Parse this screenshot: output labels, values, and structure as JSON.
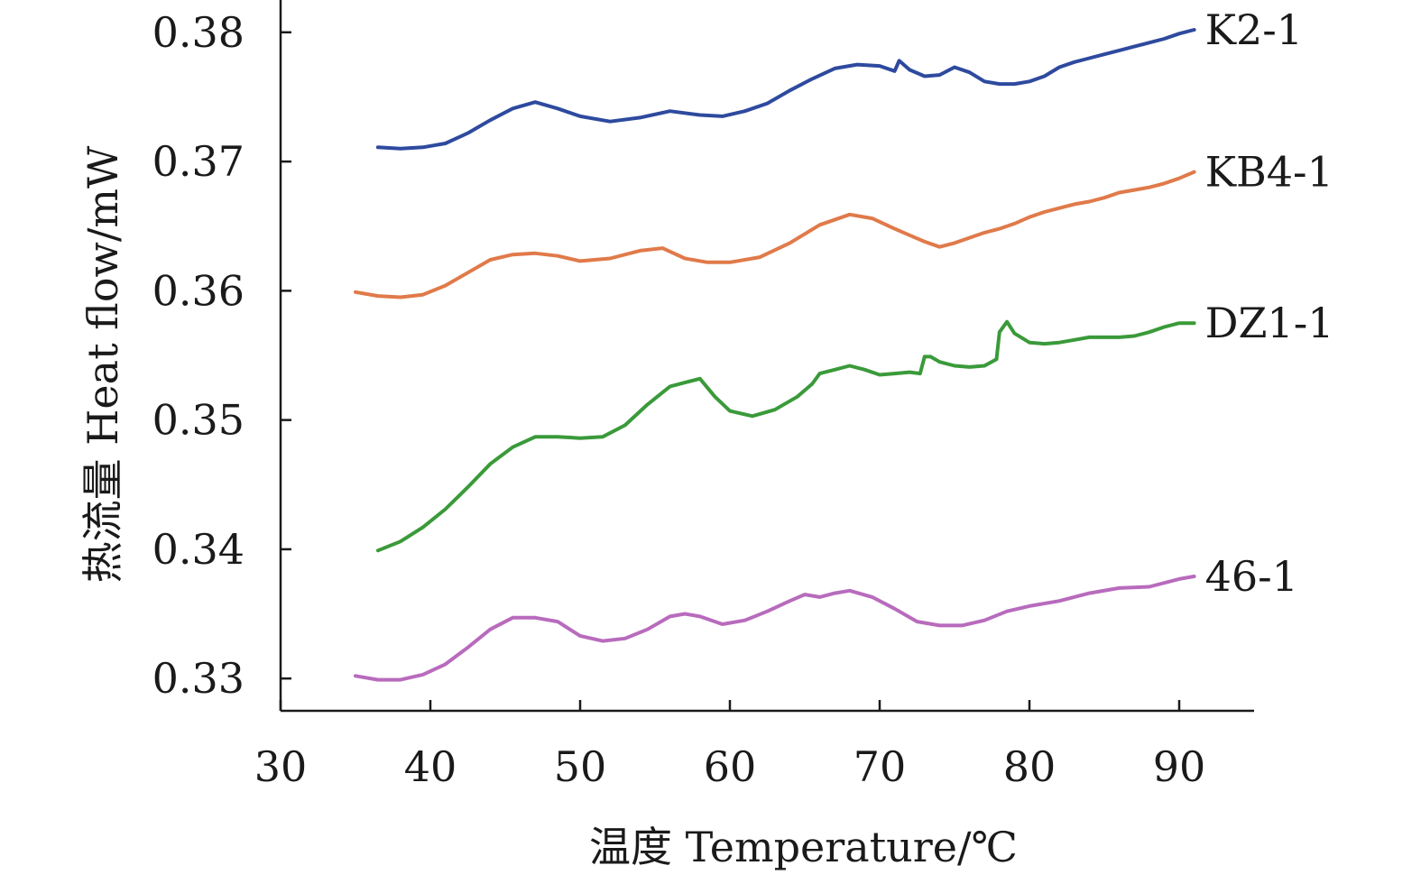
{
  "chart_data": {
    "type": "line",
    "xlabel": "温度 Temperature/℃",
    "ylabel": "热流量 Heat flow/mW",
    "xlim": [
      30,
      95
    ],
    "ylim": [
      0.3275,
      0.3825
    ],
    "xticks": [
      30,
      40,
      50,
      60,
      70,
      80,
      90
    ],
    "yticks": [
      0.33,
      0.34,
      0.35,
      0.36,
      0.37,
      0.38
    ],
    "xtick_labels": [
      "30",
      "40",
      "50",
      "60",
      "70",
      "80",
      "90"
    ],
    "ytick_labels": [
      "0.33",
      "0.34",
      "0.35",
      "0.36",
      "0.37",
      "0.38"
    ],
    "grid": false,
    "legend": "none",
    "series": [
      {
        "name": "K2-1",
        "color": "#2e4a9e",
        "x": [
          36.5,
          38,
          39.5,
          41,
          42.5,
          44,
          45.5,
          47,
          48.5,
          50,
          52,
          54,
          56,
          58,
          59.5,
          61,
          62.5,
          64,
          65.5,
          67,
          68.5,
          70,
          71,
          71.3,
          72,
          73,
          74,
          75,
          76,
          77,
          78,
          79,
          80,
          81,
          82,
          83,
          84,
          85,
          86,
          87,
          88,
          89,
          90,
          91
        ],
        "y": [
          0.3711,
          0.371,
          0.3711,
          0.3714,
          0.3722,
          0.3732,
          0.3741,
          0.3746,
          0.3741,
          0.3735,
          0.3731,
          0.3734,
          0.3739,
          0.3736,
          0.3735,
          0.3739,
          0.3745,
          0.3755,
          0.3764,
          0.3772,
          0.3775,
          0.3774,
          0.377,
          0.3778,
          0.3771,
          0.3766,
          0.3767,
          0.3773,
          0.3769,
          0.3762,
          0.376,
          0.376,
          0.3762,
          0.3766,
          0.3773,
          0.3777,
          0.378,
          0.3783,
          0.3786,
          0.3789,
          0.3792,
          0.3795,
          0.3799,
          0.3802
        ]
      },
      {
        "name": "KB4-1",
        "color": "#e07a4a",
        "x": [
          35,
          36.5,
          38,
          39.5,
          41,
          42.5,
          44,
          45.5,
          47,
          48.5,
          50,
          52,
          54,
          55.5,
          57,
          58.5,
          60,
          62,
          64,
          66,
          68,
          69.5,
          71,
          72,
          73,
          74,
          75,
          76,
          77,
          78,
          79,
          80,
          81,
          82,
          83,
          84,
          85,
          86,
          87,
          88,
          89,
          90,
          91
        ],
        "y": [
          0.3599,
          0.3596,
          0.3595,
          0.3597,
          0.3604,
          0.3614,
          0.3624,
          0.3628,
          0.3629,
          0.3627,
          0.3623,
          0.3625,
          0.3631,
          0.3633,
          0.3625,
          0.3622,
          0.3622,
          0.3626,
          0.3637,
          0.3651,
          0.3659,
          0.3656,
          0.3648,
          0.3643,
          0.3638,
          0.3634,
          0.3637,
          0.3641,
          0.3645,
          0.3648,
          0.3652,
          0.3657,
          0.3661,
          0.3664,
          0.3667,
          0.3669,
          0.3672,
          0.3676,
          0.3678,
          0.368,
          0.3683,
          0.3687,
          0.3692
        ]
      },
      {
        "name": "DZ1-1",
        "color": "#3a9a3a",
        "x": [
          36.5,
          38,
          39.5,
          41,
          42.5,
          44,
          45.5,
          47,
          48.5,
          50,
          51.5,
          53,
          54.5,
          56,
          57,
          58,
          59,
          60,
          61.5,
          63,
          64.5,
          65.5,
          66,
          67,
          68,
          69,
          70,
          71,
          72,
          72.7,
          73,
          73.4,
          74,
          75,
          76,
          77,
          77.8,
          78,
          78.5,
          79,
          80,
          81,
          82,
          83,
          84,
          85,
          86,
          87,
          88,
          89,
          90,
          91
        ],
        "y": [
          0.3399,
          0.3406,
          0.3417,
          0.3431,
          0.3448,
          0.3466,
          0.3479,
          0.3487,
          0.3487,
          0.3486,
          0.3487,
          0.3496,
          0.3512,
          0.3526,
          0.3529,
          0.3532,
          0.3518,
          0.3507,
          0.3503,
          0.3508,
          0.3518,
          0.3528,
          0.3536,
          0.3539,
          0.3542,
          0.3539,
          0.3535,
          0.3536,
          0.3537,
          0.3536,
          0.3549,
          0.3549,
          0.3545,
          0.3542,
          0.3541,
          0.3542,
          0.3547,
          0.3568,
          0.3576,
          0.3567,
          0.356,
          0.3559,
          0.356,
          0.3562,
          0.3564,
          0.3564,
          0.3564,
          0.3565,
          0.3568,
          0.3572,
          0.3575,
          0.3575
        ]
      },
      {
        "name": "46-1",
        "color": "#b86bbd",
        "x": [
          35,
          36.5,
          38,
          39.5,
          41,
          42.5,
          44,
          45.5,
          47,
          48.5,
          50,
          51.5,
          53,
          54.5,
          56,
          57,
          58,
          59.5,
          61,
          62.5,
          64,
          65,
          66,
          67,
          68,
          69.5,
          71,
          72.5,
          74,
          75.5,
          77,
          78.5,
          80,
          82,
          84,
          86,
          88,
          90,
          91
        ],
        "y": [
          0.3302,
          0.3299,
          0.3299,
          0.3303,
          0.3311,
          0.3324,
          0.3338,
          0.3347,
          0.3347,
          0.3344,
          0.3333,
          0.3329,
          0.3331,
          0.3338,
          0.3348,
          0.335,
          0.3348,
          0.3342,
          0.3345,
          0.3352,
          0.336,
          0.3365,
          0.3363,
          0.3366,
          0.3368,
          0.3363,
          0.3354,
          0.3344,
          0.3341,
          0.3341,
          0.3345,
          0.3352,
          0.3356,
          0.336,
          0.3366,
          0.337,
          0.3371,
          0.3377,
          0.3379
        ]
      }
    ],
    "annotations": [
      {
        "text": "K2-1",
        "series": "K2-1"
      },
      {
        "text": "KB4-1",
        "series": "KB4-1"
      },
      {
        "text": "DZ1-1",
        "series": "DZ1-1"
      },
      {
        "text": "46-1",
        "series": "46-1"
      }
    ]
  }
}
